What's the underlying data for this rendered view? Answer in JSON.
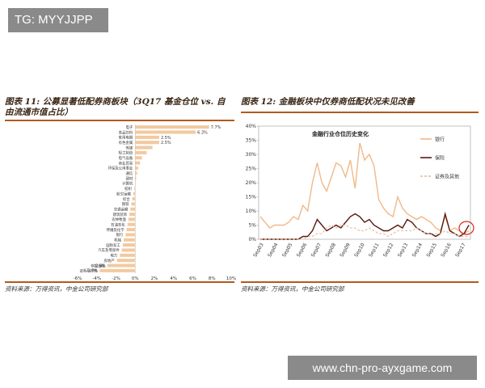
{
  "overlay": {
    "top_tag": "TG: MYYJJPP",
    "bottom_watermark": "www.chn-pro-ayxgame.com"
  },
  "left_panel": {
    "figure_title_line1": "图表 11: 公募显著低配券商板块（3Q17 基金仓位 vs. 自",
    "figure_title_line2": "由流通市值占比）",
    "source": "资料来源：万得资讯，中金公司研究部"
  },
  "right_panel": {
    "figure_title": "图表 12: 金融板块中仅券商低配状况未见改善",
    "source": "资料来源：万得资讯，中金公司研究部"
  },
  "chart_data": [
    {
      "type": "bar",
      "orientation": "horizontal",
      "categories": [
        "电子",
        "食品饮料",
        "家用电器",
        "有色金属",
        "传媒",
        "轻工制造",
        "电气设备",
        "商业贸易",
        "环保及公用事业",
        "通信",
        "建材",
        "计算机",
        "纺织",
        "航空运输",
        "综合",
        "钢铁",
        "交通运输",
        "建筑装饰",
        "农林牧渔",
        "石油石化",
        "传播及化学",
        "银行",
        "机械",
        "国防军工",
        "汽车及零部件",
        "电力",
        "房地产",
        "非银金融",
        "证券及其他"
      ],
      "values": [
        7.7,
        6.3,
        2.5,
        2.5,
        1.8,
        1.2,
        0.7,
        0.5,
        0.3,
        0.2,
        0.1,
        0.0,
        -0.1,
        -0.2,
        -0.3,
        -0.4,
        -0.5,
        -0.6,
        -0.7,
        -0.8,
        -0.9,
        -1.0,
        -1.2,
        -1.3,
        -1.4,
        -1.6,
        -1.9,
        -2.9,
        -3.7
      ],
      "data_labels": {
        "0": "7.7%",
        "1": "6.3%",
        "2": "2.5%",
        "3": "2.5%",
        "27": "-2.9%",
        "28": "-3.7%"
      },
      "xlim": [
        -6,
        10
      ],
      "xticks": [
        "-6%",
        "-4%",
        "-2%",
        "0%",
        "2%",
        "4%",
        "6%",
        "8%",
        "10%"
      ],
      "bar_color": "#f2c9a0"
    },
    {
      "type": "line",
      "title": "金融行业仓位历史变化",
      "x_labels": [
        "Sep03",
        "Sep04",
        "Sep05",
        "Sep06",
        "Sep07",
        "Sep08",
        "Sep09",
        "Sep10",
        "Sep11",
        "Sep12",
        "Sep13",
        "Sep14",
        "Sep15",
        "Sep16",
        "Sep17"
      ],
      "yticks": [
        "0%",
        "5%",
        "10%",
        "15%",
        "20%",
        "25%",
        "30%",
        "35%",
        "40%"
      ],
      "ylim": [
        0,
        40
      ],
      "legend_position": "right",
      "series": [
        {
          "name": "银行",
          "color": "#f0b98a",
          "dash": "solid",
          "values": [
            8,
            6,
            4,
            5,
            5,
            5,
            6,
            8,
            7,
            12,
            10,
            20,
            27,
            20,
            17,
            22,
            27,
            26,
            22,
            28,
            18,
            34,
            28,
            30,
            26,
            14,
            11,
            9,
            8,
            15,
            11,
            9,
            8,
            7,
            8,
            7,
            6,
            4,
            3,
            8,
            3,
            4,
            3,
            2,
            3
          ]
        },
        {
          "name": "保险",
          "color": "#5a1a12",
          "dash": "solid",
          "values": [
            0,
            0,
            0,
            0,
            0,
            0,
            0,
            0,
            0,
            1,
            1,
            3,
            7,
            5,
            3,
            4,
            5,
            4,
            6,
            8,
            9,
            8,
            6,
            7,
            5,
            4,
            3,
            3,
            4,
            5,
            4,
            7,
            6,
            4,
            3,
            2,
            2,
            1,
            2,
            9,
            3,
            2,
            1,
            2,
            5
          ]
        },
        {
          "name": "证券及其他",
          "color": "#e0bc98",
          "dash": "dashed",
          "values": [
            0,
            0,
            0,
            0,
            0,
            0,
            0,
            0,
            0,
            0,
            1,
            1,
            2,
            2,
            4,
            5,
            4,
            5,
            5,
            4,
            4,
            3,
            3,
            4,
            3,
            2,
            2,
            1,
            2,
            3,
            3,
            3,
            3,
            4,
            3,
            2,
            2,
            2,
            2,
            3,
            2,
            2,
            1,
            1,
            1
          ]
        }
      ]
    }
  ]
}
